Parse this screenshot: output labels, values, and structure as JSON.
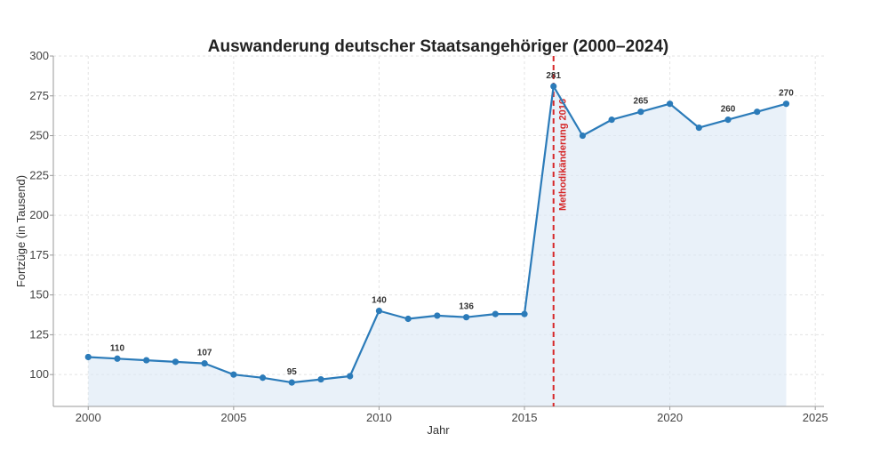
{
  "chart_data": {
    "type": "line",
    "title": "Auswanderung deutscher Staatsangehöriger (2000–2024)",
    "xlabel": "Jahr",
    "ylabel": "Fortzüge (in Tausend)",
    "xlim": [
      1998.8,
      2025.3
    ],
    "ylim": [
      80,
      300
    ],
    "x_ticks": [
      2000,
      2005,
      2010,
      2015,
      2020,
      2025
    ],
    "y_ticks": [
      100,
      125,
      150,
      175,
      200,
      225,
      250,
      275,
      300
    ],
    "grid": true,
    "series": [
      {
        "name": "Fortzüge",
        "color": "#2b7bb9",
        "fill_color": "#dbe8f5",
        "x": [
          2000,
          2001,
          2002,
          2003,
          2004,
          2005,
          2006,
          2007,
          2008,
          2009,
          2010,
          2011,
          2012,
          2013,
          2014,
          2015,
          2016,
          2017,
          2018,
          2019,
          2020,
          2021,
          2022,
          2023,
          2024
        ],
        "values": [
          111,
          110,
          109,
          108,
          107,
          100,
          98,
          95,
          97,
          99,
          140,
          135,
          137,
          136,
          138,
          138,
          281,
          250,
          260,
          265,
          270,
          255,
          260,
          265,
          270
        ]
      }
    ],
    "data_labels": [
      {
        "x": 2001,
        "value": 110,
        "text": "110"
      },
      {
        "x": 2004,
        "value": 107,
        "text": "107"
      },
      {
        "x": 2007,
        "value": 95,
        "text": "95"
      },
      {
        "x": 2010,
        "value": 140,
        "text": "140"
      },
      {
        "x": 2013,
        "value": 136,
        "text": "136"
      },
      {
        "x": 2016,
        "value": 281,
        "text": "281"
      },
      {
        "x": 2019,
        "value": 265,
        "text": "265"
      },
      {
        "x": 2022,
        "value": 260,
        "text": "260"
      },
      {
        "x": 2024,
        "value": 270,
        "text": "270"
      }
    ],
    "annotations": [
      {
        "type": "vline",
        "x": 2016,
        "text": "Methodikänderung 2016",
        "color": "#d62728"
      }
    ]
  }
}
